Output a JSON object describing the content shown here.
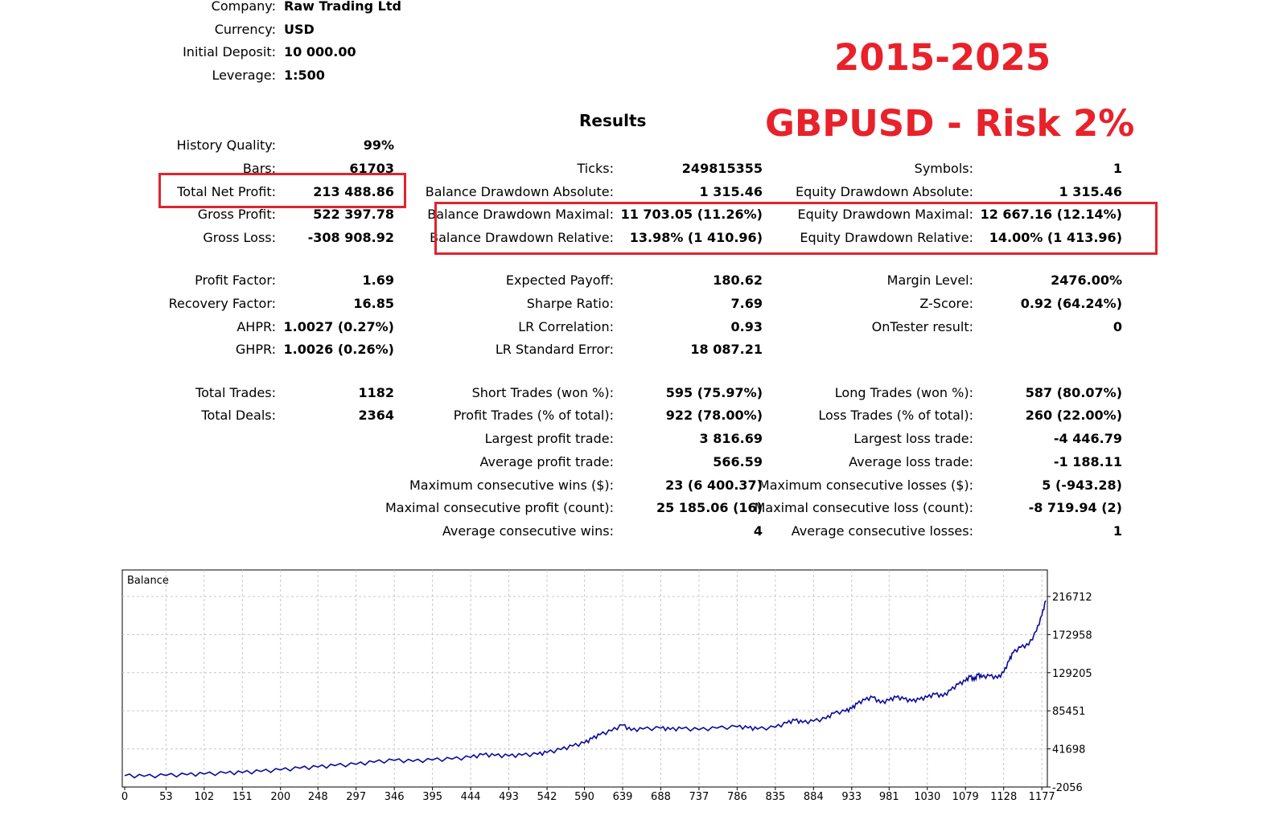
{
  "header": {
    "company": {
      "label": "Company:",
      "value": "Raw Trading Ltd"
    },
    "currency": {
      "label": "Currency:",
      "value": "USD"
    },
    "initial_deposit": {
      "label": "Initial Deposit:",
      "value": "10 000.00"
    },
    "leverage": {
      "label": "Leverage:",
      "value": "1:500"
    }
  },
  "overlay": {
    "period": "2015-2025",
    "symbol_risk": "GBPUSD - Risk 2%",
    "color": "#e8212a"
  },
  "results_title": "Results",
  "col1": [
    {
      "label": "History Quality:",
      "value": "99%"
    },
    {
      "label": "Bars:",
      "value": "61703"
    },
    {
      "label": "Total Net Profit:",
      "value": "213 488.86"
    },
    {
      "label": "Gross Profit:",
      "value": "522 397.78"
    },
    {
      "label": "Gross Loss:",
      "value": "-308 908.92"
    },
    {
      "label": "Profit Factor:",
      "value": "1.69"
    },
    {
      "label": "Recovery Factor:",
      "value": "16.85"
    },
    {
      "label": "AHPR:",
      "value": "1.0027 (0.27%)"
    },
    {
      "label": "GHPR:",
      "value": "1.0026 (0.26%)"
    },
    {
      "label": "Total Trades:",
      "value": "1182"
    },
    {
      "label": "Total Deals:",
      "value": "2364"
    }
  ],
  "col2": [
    {
      "label": "Ticks:",
      "value": "249815355"
    },
    {
      "label": "Balance Drawdown Absolute:",
      "value": "1 315.46"
    },
    {
      "label": "Balance Drawdown Maximal:",
      "value": "11 703.05 (11.26%)"
    },
    {
      "label": "Balance Drawdown Relative:",
      "value": "13.98% (1 410.96)"
    },
    {
      "label": "Expected Payoff:",
      "value": "180.62"
    },
    {
      "label": "Sharpe Ratio:",
      "value": "7.69"
    },
    {
      "label": "LR Correlation:",
      "value": "0.93"
    },
    {
      "label": "LR Standard Error:",
      "value": "18 087.21"
    },
    {
      "label": "Short Trades (won %):",
      "value": "595 (75.97%)"
    },
    {
      "label": "Profit Trades (% of total):",
      "value": "922 (78.00%)"
    },
    {
      "label": "Largest profit trade:",
      "value": "3 816.69"
    },
    {
      "label": "Average profit trade:",
      "value": "566.59"
    },
    {
      "label": "Maximum consecutive wins ($):",
      "value": "23 (6 400.37)"
    },
    {
      "label": "Maximal consecutive profit (count):",
      "value": "25 185.06 (16)"
    },
    {
      "label": "Average consecutive wins:",
      "value": "4"
    }
  ],
  "col3": [
    {
      "label": "Symbols:",
      "value": "1"
    },
    {
      "label": "Equity Drawdown Absolute:",
      "value": "1 315.46"
    },
    {
      "label": "Equity Drawdown Maximal:",
      "value": "12 667.16 (12.14%)"
    },
    {
      "label": "Equity Drawdown Relative:",
      "value": "14.00% (1 413.96)"
    },
    {
      "label": "Margin Level:",
      "value": "2476.00%"
    },
    {
      "label": "Z-Score:",
      "value": "0.92 (64.24%)"
    },
    {
      "label": "OnTester result:",
      "value": "0"
    },
    {
      "label": "Long Trades (won %):",
      "value": "587 (80.07%)"
    },
    {
      "label": "Loss Trades (% of total):",
      "value": "260 (22.00%)"
    },
    {
      "label": "Largest loss trade:",
      "value": "-4 446.79"
    },
    {
      "label": "Average loss trade:",
      "value": "-1 188.11"
    },
    {
      "label": "Maximum consecutive losses ($):",
      "value": "5 (-943.28)"
    },
    {
      "label": "Maximal consecutive loss (count):",
      "value": "-8 719.94 (2)"
    },
    {
      "label": "Average consecutive losses:",
      "value": "1"
    }
  ],
  "chart_data": {
    "type": "line",
    "title": "Balance",
    "xlabel": "",
    "ylabel": "",
    "x_ticks": [
      "0",
      "53",
      "102",
      "151",
      "200",
      "248",
      "297",
      "346",
      "395",
      "444",
      "493",
      "542",
      "590",
      "639",
      "688",
      "737",
      "786",
      "835",
      "884",
      "933",
      "981",
      "1030",
      "1079",
      "1128",
      "1177"
    ],
    "y_ticks": [
      "-2056",
      "41698",
      "85451",
      "129205",
      "172958",
      "216712"
    ],
    "xlim": [
      0,
      1182
    ],
    "ylim": [
      -2056,
      216712
    ],
    "grid": true,
    "line_color": "#0a0a9c",
    "series": [
      {
        "name": "",
        "x": [
          0,
          25,
          53,
          80,
          102,
          130,
          151,
          175,
          200,
          225,
          248,
          270,
          297,
          320,
          346,
          370,
          395,
          420,
          444,
          460,
          475,
          493,
          510,
          530,
          542,
          560,
          575,
          590,
          600,
          610,
          625,
          639,
          650,
          665,
          688,
          700,
          715,
          737,
          760,
          786,
          800,
          812,
          835,
          850,
          860,
          870,
          884,
          900,
          910,
          925,
          933,
          940,
          950,
          960,
          970,
          981,
          990,
          1000,
          1010,
          1020,
          1030,
          1040,
          1050,
          1060,
          1070,
          1079,
          1085,
          1090,
          1095,
          1100,
          1110,
          1120,
          1128,
          1135,
          1140,
          1150,
          1160,
          1170,
          1177,
          1182
        ],
        "y": [
          11000,
          10200,
          11200,
          12000,
          12800,
          13800,
          14500,
          15800,
          17500,
          19500,
          20800,
          22500,
          24000,
          26500,
          28500,
          27500,
          29000,
          30000,
          32000,
          35000,
          34000,
          33500,
          34500,
          35500,
          37500,
          41000,
          45000,
          48500,
          53500,
          58000,
          62500,
          69000,
          63000,
          64500,
          65500,
          64000,
          65000,
          63800,
          65500,
          67000,
          65800,
          64500,
          66500,
          71500,
          74500,
          72000,
          73500,
          76500,
          82500,
          85000,
          88000,
          93500,
          98000,
          101000,
          94500,
          97500,
          101000,
          99000,
          96500,
          98500,
          101000,
          104500,
          102000,
          109000,
          116000,
          119500,
          125000,
          120500,
          127000,
          124000,
          125500,
          123000,
          129500,
          143000,
          152000,
          158500,
          161000,
          177000,
          195000,
          212000
        ]
      }
    ]
  }
}
